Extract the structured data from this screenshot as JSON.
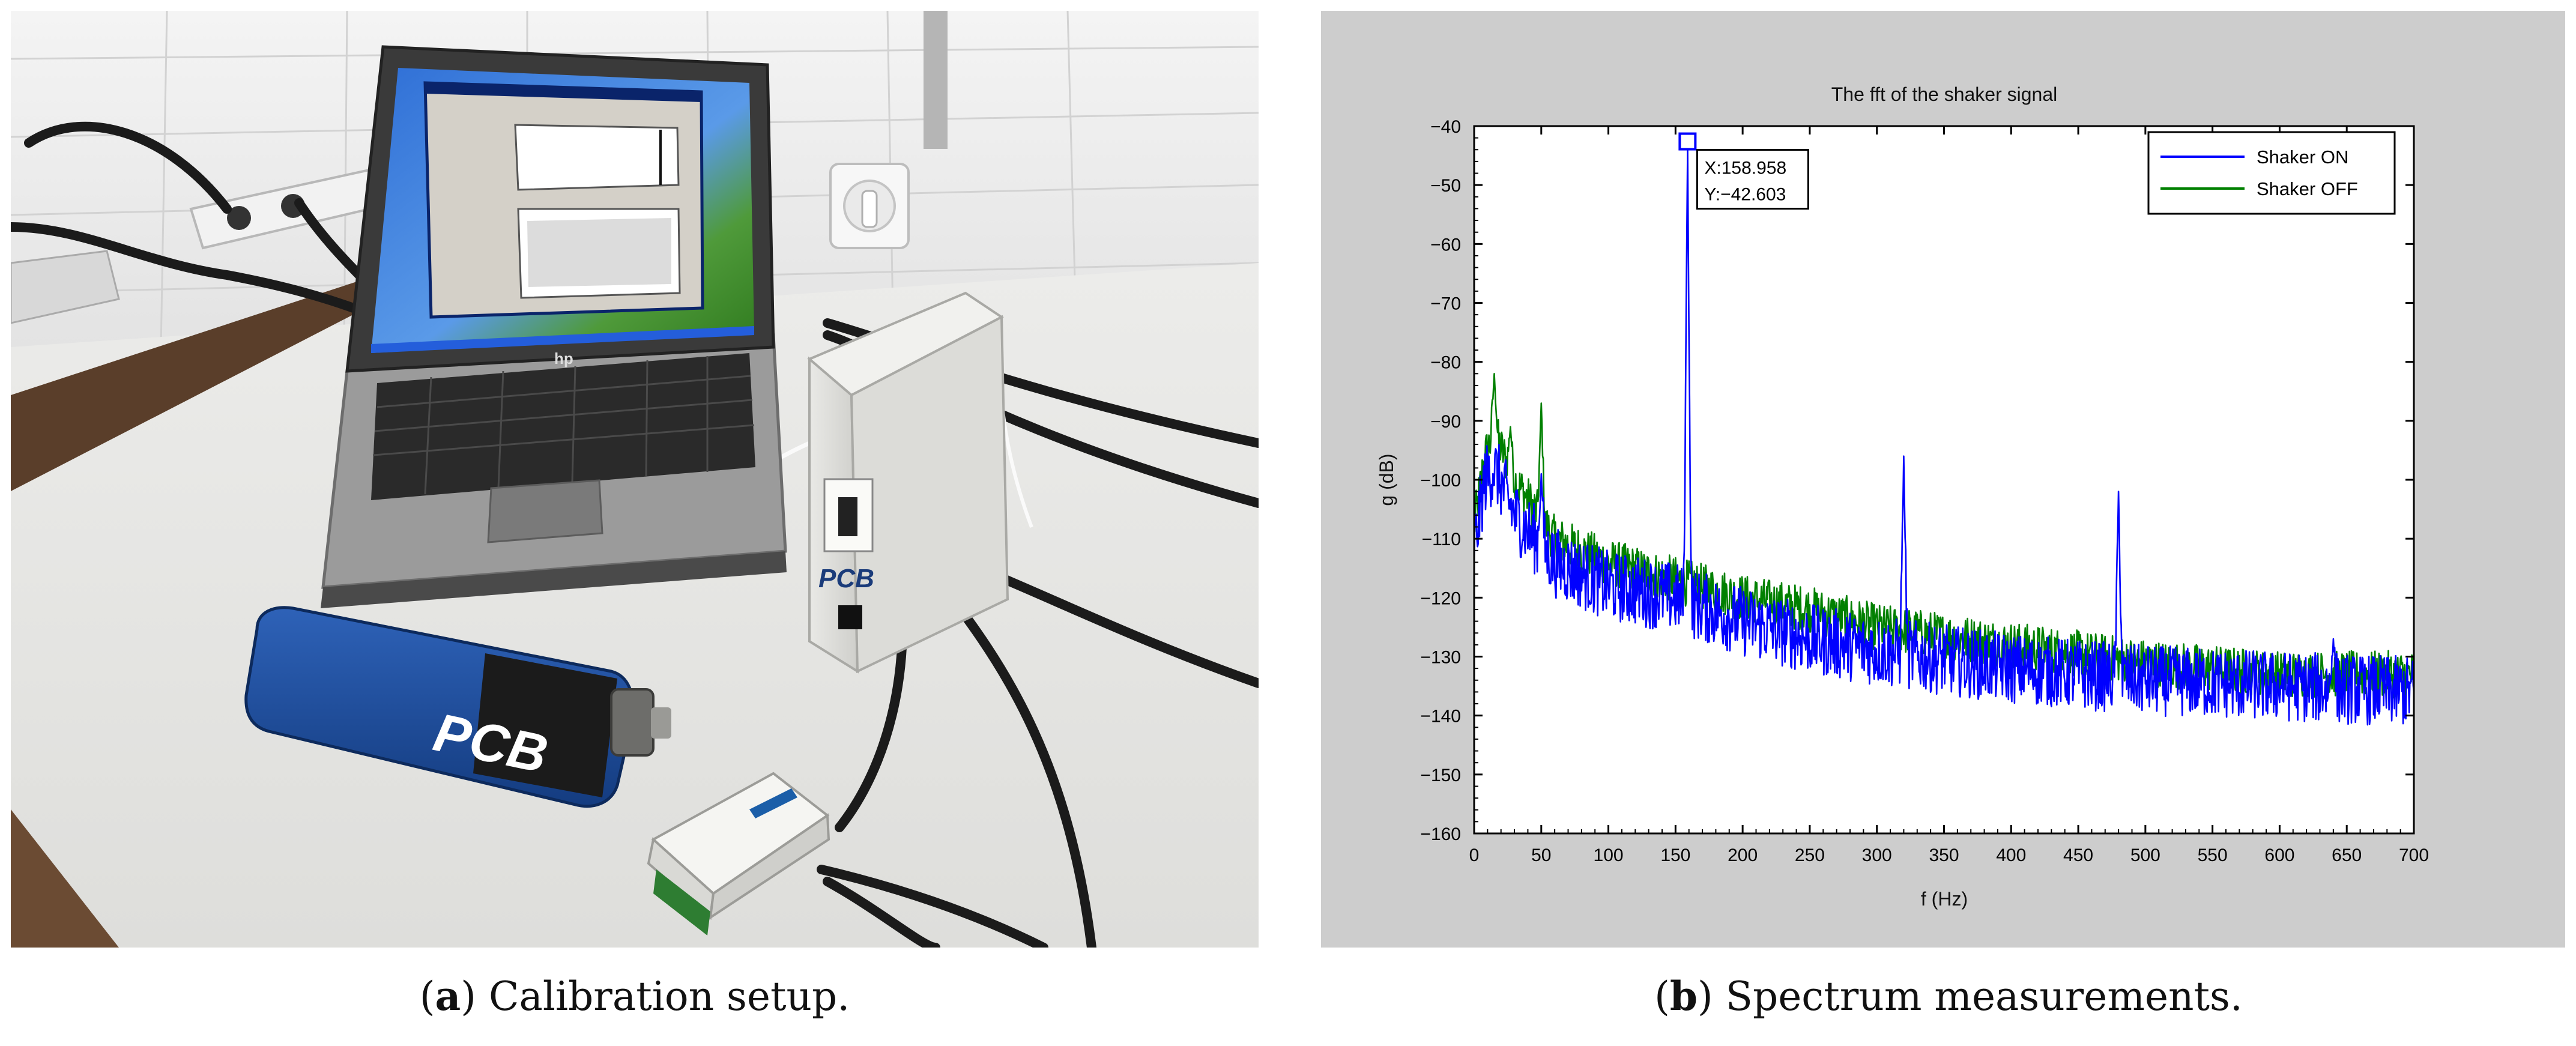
{
  "figure": {
    "panel_a": {
      "letter": "a",
      "caption": "Calibration setup."
    },
    "panel_b": {
      "letter": "b",
      "caption": "Spectrum measurements."
    }
  },
  "photo": {
    "brand_label": "PCB",
    "device_label": "PCB"
  },
  "colors": {
    "shaker_on": "#0000ff",
    "shaker_off": "#008000",
    "chart_bg": "#cdcdcd",
    "plot_bg": "#ffffff"
  },
  "chart_data": {
    "type": "line",
    "title": "The fft of the shaker signal",
    "xlabel": "f (Hz)",
    "ylabel": "g (dB)",
    "xlim": [
      0,
      700
    ],
    "ylim": [
      -160,
      -40
    ],
    "xticks": [
      0,
      50,
      100,
      150,
      200,
      250,
      300,
      350,
      400,
      450,
      500,
      550,
      600,
      650,
      700
    ],
    "yticks": [
      -40,
      -50,
      -60,
      -70,
      -80,
      -90,
      -100,
      -110,
      -120,
      -130,
      -140,
      -150,
      -160
    ],
    "xtick_labels": [
      "0",
      "50",
      "100",
      "150",
      "200",
      "250",
      "300",
      "350",
      "400",
      "450",
      "500",
      "550",
      "600",
      "650",
      "700"
    ],
    "ytick_labels": [
      "−40",
      "−50",
      "−60",
      "−70",
      "−80",
      "−90",
      "−100",
      "−110",
      "−120",
      "−130",
      "−140",
      "−150",
      "−160"
    ],
    "legend_position": "top-right",
    "series": [
      {
        "name": "Shaker ON",
        "color": "#0000ff",
        "baseline": [
          [
            0,
            -112
          ],
          [
            8,
            -100
          ],
          [
            15,
            -98
          ],
          [
            30,
            -106
          ],
          [
            60,
            -114
          ],
          [
            100,
            -118
          ],
          [
            150,
            -120
          ],
          [
            200,
            -124
          ],
          [
            250,
            -127
          ],
          [
            300,
            -129
          ],
          [
            400,
            -132
          ],
          [
            500,
            -134
          ],
          [
            600,
            -135
          ],
          [
            700,
            -136
          ]
        ],
        "noise_amplitude": 6,
        "peaks": [
          [
            158.958,
            -42.603
          ],
          [
            320,
            -96
          ],
          [
            480,
            -102
          ],
          [
            50,
            -99
          ],
          [
            640,
            -127
          ]
        ]
      },
      {
        "name": "Shaker OFF",
        "color": "#008000",
        "baseline": [
          [
            0,
            -108
          ],
          [
            8,
            -96
          ],
          [
            15,
            -92
          ],
          [
            30,
            -100
          ],
          [
            60,
            -110
          ],
          [
            100,
            -114
          ],
          [
            150,
            -117
          ],
          [
            200,
            -120
          ],
          [
            250,
            -122
          ],
          [
            300,
            -125
          ],
          [
            400,
            -128
          ],
          [
            500,
            -131
          ],
          [
            600,
            -133
          ],
          [
            700,
            -133
          ]
        ],
        "noise_amplitude": 4,
        "peaks": [
          [
            15,
            -82
          ],
          [
            50,
            -87
          ],
          [
            27,
            -91
          ]
        ]
      }
    ],
    "datatip": {
      "x": 158.958,
      "y": -42.603,
      "x_label": "X:158.958",
      "y_label": "Y:−42.603"
    }
  }
}
